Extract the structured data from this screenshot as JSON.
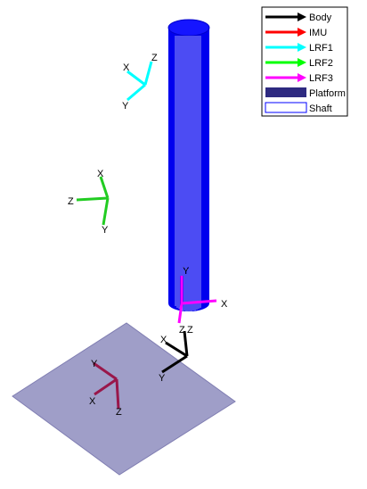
{
  "legend": {
    "items": [
      {
        "label": "Body",
        "color": "#000000",
        "style": "arrow"
      },
      {
        "label": "IMU",
        "color": "#ff0000",
        "style": "arrow"
      },
      {
        "label": "LRF1",
        "color": "#00ffff",
        "style": "arrow"
      },
      {
        "label": "LRF2",
        "color": "#00ff00",
        "style": "arrow"
      },
      {
        "label": "LRF3",
        "color": "#ff00ff",
        "style": "arrow"
      },
      {
        "label": "Platform",
        "color": "#2e2a80",
        "style": "patch"
      },
      {
        "label": "Shaft",
        "color": "#0000ff",
        "style": "outline"
      }
    ]
  },
  "frames": {
    "lrf1": {
      "color": "#00ffff",
      "labels": {
        "x": "X",
        "y": "Y",
        "z": "Z"
      }
    },
    "lrf2": {
      "color": "#22cc22",
      "labels": {
        "x": "X",
        "y": "Y",
        "z": "Z"
      }
    },
    "lrf3": {
      "color": "#ff00ff",
      "labels": {
        "x": "X",
        "y": "Y",
        "z": "Z"
      }
    },
    "body": {
      "color": "#000000",
      "labels": {
        "x": "X",
        "y": "Y",
        "z": "Z"
      }
    },
    "platform_frame": {
      "color": "#99174a",
      "labels": {
        "x": "X",
        "y": "Y",
        "z": "Z"
      }
    }
  },
  "colors": {
    "shaft": "#0000ee",
    "shaft_lines": "#ffffff",
    "platform_fill": "#9f9ec8",
    "platform_edge": "#6f6d9f"
  }
}
